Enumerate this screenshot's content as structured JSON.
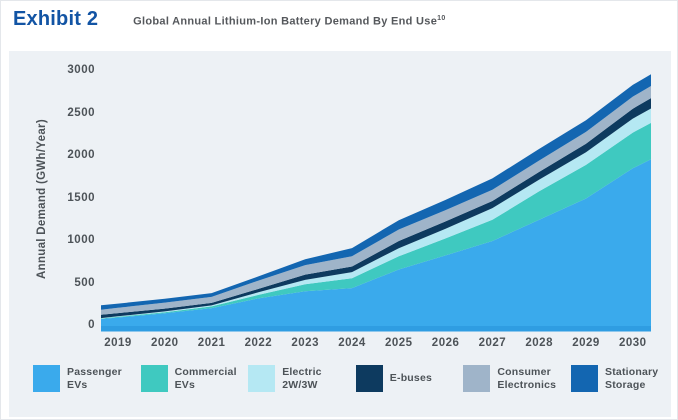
{
  "header": {
    "exhibit_label": "Exhibit 2",
    "title": "Global Annual Lithium-Ion Battery Demand By End Use",
    "title_superscript": "10"
  },
  "chart_data": {
    "type": "area",
    "stacked": true,
    "title": "Global Annual Lithium-Ion Battery Demand By End Use",
    "xlabel": "",
    "ylabel": "Annual Demand (GWh/Year)",
    "ylim": [
      0,
      3000
    ],
    "ytick_step": 500,
    "yticks": [
      0,
      500,
      1000,
      1500,
      2000,
      2500,
      3000
    ],
    "grid": false,
    "legend_position": "bottom",
    "background": "#edf1f5",
    "axis_line_color": "#2f9de2",
    "categories": [
      2019,
      2020,
      2021,
      2022,
      2023,
      2024,
      2025,
      2026,
      2027,
      2028,
      2029,
      2030
    ],
    "series": [
      {
        "name": "Passenger EVs",
        "legend_label": "Passenger\nEVs",
        "color": "#3aaaec",
        "values": [
          100,
          150,
          210,
          325,
          410,
          446,
          665,
          830,
          1000,
          1250,
          1500,
          1855
        ]
      },
      {
        "name": "Commercial EVs",
        "legend_label": "Commercial\nEVs",
        "color": "#3fc9c0",
        "values": [
          8,
          12,
          20,
          41,
          82,
          116,
          155,
          200,
          250,
          335,
          395,
          420
        ]
      },
      {
        "name": "Electric 2W/3W",
        "legend_label": "Electric\n2W/3W",
        "color": "#b5e8f3",
        "values": [
          6,
          10,
          12,
          30,
          50,
          72,
          95,
          115,
          137,
          137,
          150,
          165
        ]
      },
      {
        "name": "E-buses",
        "legend_label": "E-buses",
        "color": "#0d3a5f",
        "values": [
          38,
          33,
          30,
          41,
          63,
          66,
          85,
          85,
          84,
          91,
          100,
          117
        ]
      },
      {
        "name": "Consumer Electronics",
        "legend_label": "Consumer\nElectronics",
        "color": "#9fb4c9",
        "values": [
          62,
          70,
          70,
          97,
          112,
          121,
          135,
          134,
          133,
          134,
          138,
          142
        ]
      },
      {
        "name": "Stationary Storage",
        "legend_label": "Stationary\nStorage",
        "color": "#1366b1",
        "values": [
          50,
          45,
          45,
          50,
          68,
          96,
          110,
          120,
          133,
          137,
          138,
          138
        ]
      }
    ]
  }
}
